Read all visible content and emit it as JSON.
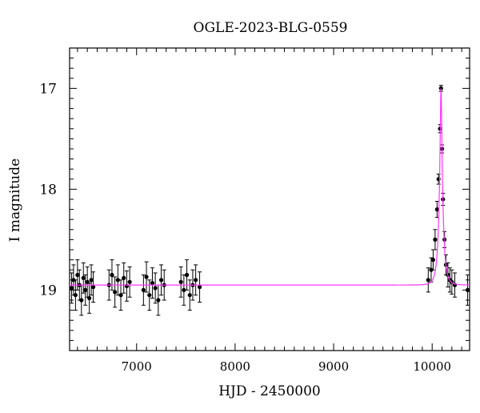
{
  "chart_data": {
    "type": "scatter",
    "title": "OGLE-2023-BLG-0559",
    "xlabel": "HJD - 2450000",
    "ylabel": "I magnitude",
    "xlim": [
      6320,
      10380
    ],
    "ylim": [
      19.6,
      16.6
    ],
    "y_inverted": true,
    "x_ticks": [
      7000,
      8000,
      9000,
      10000
    ],
    "x_tick_labels": [
      "7000",
      "8000",
      "9000",
      "10000"
    ],
    "y_ticks": [
      17,
      18,
      19
    ],
    "y_tick_labels": [
      "17",
      "18",
      "19"
    ],
    "grid": false,
    "legend": "none",
    "colors": {
      "points": "#000000",
      "model": "#ff33ff"
    },
    "series": [
      {
        "type": "points_with_errorbars",
        "x": [
          6340,
          6360,
          6380,
          6400,
          6420,
          6440,
          6460,
          6480,
          6500,
          6520,
          6540,
          6560,
          6720,
          6750,
          6780,
          6810,
          6840,
          6870,
          6900,
          6930,
          7070,
          7100,
          7130,
          7160,
          7190,
          7220,
          7250,
          7280,
          7450,
          7480,
          7510,
          7540,
          7570,
          7600,
          7640,
          9960,
          9990,
          10010,
          10030,
          10050,
          10065,
          10080,
          10090,
          10100,
          10110,
          10125,
          10140,
          10160,
          10180,
          10200,
          10230,
          10360
        ],
        "y": [
          18.98,
          18.9,
          19.05,
          18.85,
          18.95,
          19.1,
          18.88,
          19.0,
          18.92,
          19.08,
          18.9,
          18.97,
          18.95,
          18.85,
          19.02,
          18.9,
          19.05,
          18.88,
          18.96,
          18.92,
          19.0,
          18.87,
          19.05,
          18.93,
          18.98,
          19.1,
          18.9,
          18.95,
          18.92,
          19.0,
          18.85,
          19.05,
          18.95,
          18.9,
          18.97,
          18.9,
          18.8,
          18.7,
          18.5,
          18.2,
          17.9,
          17.4,
          17.0,
          17.6,
          18.1,
          18.5,
          18.75,
          18.85,
          18.9,
          18.92,
          18.95,
          19.0
        ],
        "err": [
          0.15,
          0.15,
          0.15,
          0.15,
          0.15,
          0.15,
          0.15,
          0.15,
          0.15,
          0.15,
          0.15,
          0.15,
          0.15,
          0.15,
          0.15,
          0.15,
          0.15,
          0.15,
          0.15,
          0.15,
          0.15,
          0.15,
          0.15,
          0.15,
          0.15,
          0.15,
          0.15,
          0.15,
          0.15,
          0.15,
          0.15,
          0.15,
          0.15,
          0.15,
          0.15,
          0.12,
          0.12,
          0.1,
          0.1,
          0.08,
          0.05,
          0.04,
          0.03,
          0.04,
          0.06,
          0.08,
          0.1,
          0.12,
          0.12,
          0.12,
          0.12,
          0.15
        ]
      },
      {
        "type": "line",
        "model": "pspl",
        "baseline": 18.95,
        "peak_mag": 17.0,
        "t0": 10090,
        "tE": 40,
        "x_range": [
          6320,
          10380
        ]
      }
    ]
  }
}
